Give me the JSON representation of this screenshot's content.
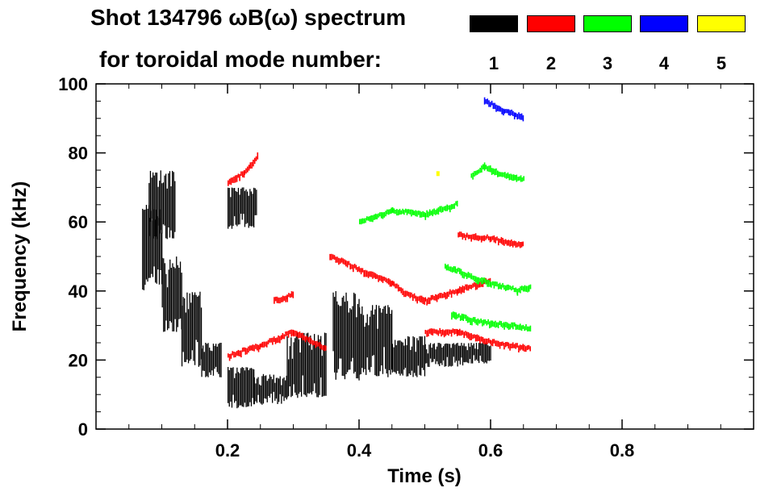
{
  "chart_data": {
    "type": "scatter",
    "title_line1": "Shot 134796 ωB(ω) spectrum",
    "title_line2": "for toroidal mode number:",
    "xlabel": "Time (s)",
    "ylabel": "Frequency (kHz)",
    "xlim": [
      0.0,
      1.0
    ],
    "ylim": [
      0,
      100
    ],
    "x_ticks": [
      0.2,
      0.4,
      0.6,
      0.8
    ],
    "x_tick_labels": [
      "0.2",
      "0.4",
      "0.6",
      "0.8"
    ],
    "y_ticks": [
      0,
      20,
      40,
      60,
      80,
      100
    ],
    "y_tick_labels": [
      "0",
      "20",
      "40",
      "60",
      "80",
      "100"
    ],
    "legend": [
      {
        "n": "1",
        "color": "#000000"
      },
      {
        "n": "2",
        "color": "#ff0000"
      },
      {
        "n": "3",
        "color": "#00ff00"
      },
      {
        "n": "4",
        "color": "#0000ff"
      },
      {
        "n": "5",
        "color": "#ffff00"
      }
    ],
    "series": [
      {
        "name": "n=1",
        "color": "#000000",
        "bands": [
          {
            "t0": 0.07,
            "t1": 0.1,
            "f0": 40,
            "f1": 65
          },
          {
            "t0": 0.08,
            "t1": 0.12,
            "f0": 55,
            "f1": 75
          },
          {
            "t0": 0.1,
            "t1": 0.13,
            "f0": 28,
            "f1": 50
          },
          {
            "t0": 0.13,
            "t1": 0.16,
            "f0": 18,
            "f1": 40
          },
          {
            "t0": 0.16,
            "t1": 0.19,
            "f0": 15,
            "f1": 25
          },
          {
            "t0": 0.2,
            "t1": 0.245,
            "f0": 58,
            "f1": 70
          },
          {
            "t0": 0.2,
            "t1": 0.24,
            "f0": 6,
            "f1": 18
          },
          {
            "t0": 0.24,
            "t1": 0.29,
            "f0": 7,
            "f1": 16
          },
          {
            "t0": 0.29,
            "t1": 0.35,
            "f0": 9,
            "f1": 28
          },
          {
            "t0": 0.36,
            "t1": 0.4,
            "f0": 14,
            "f1": 40
          },
          {
            "t0": 0.4,
            "t1": 0.45,
            "f0": 15,
            "f1": 36
          },
          {
            "t0": 0.45,
            "t1": 0.5,
            "f0": 15,
            "f1": 27
          },
          {
            "t0": 0.5,
            "t1": 0.56,
            "f0": 18,
            "f1": 25
          },
          {
            "t0": 0.56,
            "t1": 0.6,
            "f0": 19,
            "f1": 25
          }
        ]
      },
      {
        "name": "n=2",
        "color": "#ff0000",
        "tracks": [
          {
            "t": [
              0.2,
              0.225,
              0.245
            ],
            "f": [
              71,
              74,
              79
            ]
          },
          {
            "t": [
              0.2,
              0.25,
              0.3,
              0.35
            ],
            "f": [
              21,
              24,
              28,
              23
            ]
          },
          {
            "t": [
              0.355,
              0.4,
              0.45,
              0.47,
              0.5,
              0.55,
              0.6
            ],
            "f": [
              50,
              46,
              42,
              39,
              37,
              40,
              43
            ]
          },
          {
            "t": [
              0.55,
              0.6,
              0.65
            ],
            "f": [
              56,
              55,
              53
            ]
          },
          {
            "t": [
              0.5,
              0.55,
              0.6,
              0.66
            ],
            "f": [
              28,
              28,
              25,
              23
            ]
          },
          {
            "t": [
              0.27,
              0.29,
              0.3
            ],
            "f": [
              37,
              38,
              39
            ]
          }
        ]
      },
      {
        "name": "n=3",
        "color": "#00ff00",
        "tracks": [
          {
            "t": [
              0.57,
              0.59,
              0.61,
              0.65
            ],
            "f": [
              73,
              76,
              74,
              72
            ]
          },
          {
            "t": [
              0.53,
              0.57,
              0.6,
              0.64,
              0.66
            ],
            "f": [
              47,
              44,
              42,
              40,
              41
            ]
          },
          {
            "t": [
              0.54,
              0.58,
              0.62,
              0.66
            ],
            "f": [
              33,
              31,
              30,
              29
            ]
          },
          {
            "t": [
              0.4,
              0.45,
              0.5,
              0.55
            ],
            "f": [
              60,
              63,
              62,
              65
            ]
          }
        ]
      },
      {
        "name": "n=4",
        "color": "#0000ff",
        "tracks": [
          {
            "t": [
              0.59,
              0.62,
              0.65
            ],
            "f": [
              95,
              92,
              90
            ]
          }
        ]
      },
      {
        "name": "n=5",
        "color": "#ffff00",
        "tracks": [
          {
            "t": [
              0.52
            ],
            "f": [
              74
            ]
          }
        ]
      }
    ]
  }
}
